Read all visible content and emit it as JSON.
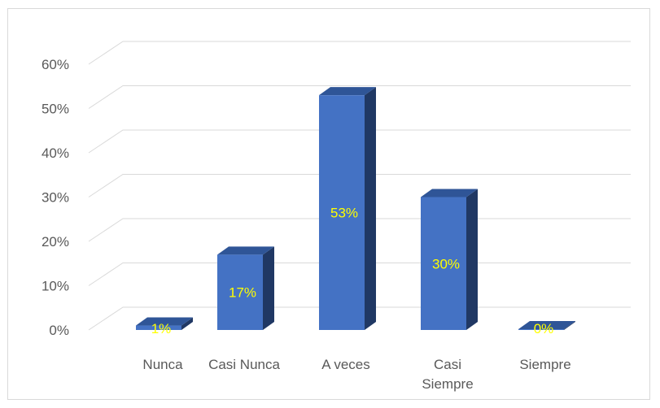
{
  "chart_data": {
    "type": "bar",
    "categories": [
      [
        "Nunca"
      ],
      [
        "Casi Nunca"
      ],
      [
        "A veces"
      ],
      [
        "Casi",
        "Siempre"
      ],
      [
        "Siempre"
      ]
    ],
    "values": [
      0.01,
      0.17,
      0.53,
      0.3,
      0.0
    ],
    "data_labels": [
      "1%",
      "17%",
      "53%",
      "30%",
      "0%"
    ],
    "y_ticks": [
      "0%",
      "10%",
      "20%",
      "30%",
      "40%",
      "50%",
      "60%"
    ],
    "ylim": [
      0,
      0.6
    ],
    "grid": true,
    "style": "3d-column",
    "colors": {
      "front": "#4472c4",
      "top": "#2f5597",
      "side": "#203864",
      "label": "#ffff00",
      "grid": "#d9d9d9"
    }
  }
}
